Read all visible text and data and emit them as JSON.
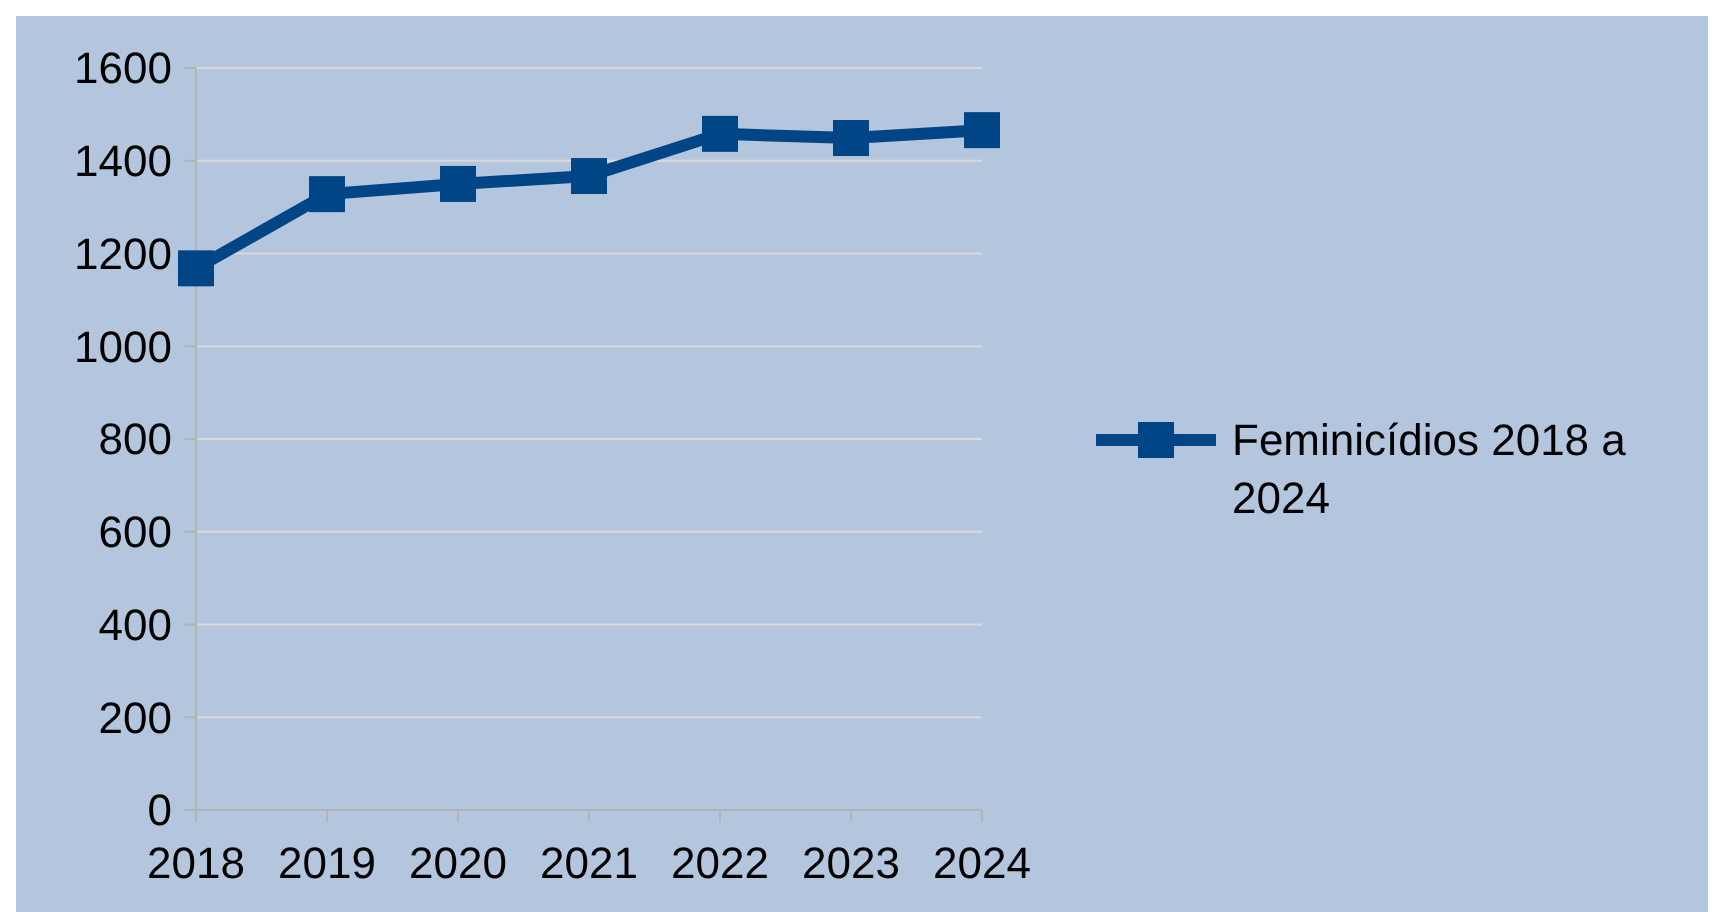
{
  "chart_data": {
    "type": "line",
    "categories": [
      "2018",
      "2019",
      "2020",
      "2021",
      "2022",
      "2023",
      "2024"
    ],
    "series": [
      {
        "name": "Feminicídios 2018 a 2024",
        "color": "#004586",
        "values": [
          1168,
          1328,
          1350,
          1367,
          1458,
          1449,
          1466
        ]
      }
    ],
    "ylim": [
      0,
      1600
    ],
    "yticks": [
      0,
      200,
      400,
      600,
      800,
      1000,
      1200,
      1400,
      1600
    ],
    "grid": "y",
    "legend": "right",
    "marker": "square",
    "line_style": "solid"
  }
}
